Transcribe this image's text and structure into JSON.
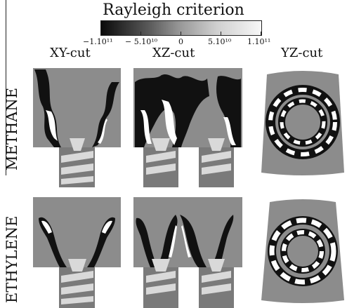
{
  "title": "Rayleigh criterion",
  "colorbar": {
    "ticks": [
      "−1.10¹¹",
      "− 5.10¹⁰",
      "0",
      "5.10¹⁰",
      "1.10¹¹"
    ],
    "colors": [
      "#0a0a0a",
      "#9a9a9a",
      "#f7f7f7"
    ]
  },
  "columns": [
    "XY-cut",
    "XZ-cut",
    "YZ-cut"
  ],
  "rows": [
    "METHANE",
    "ETHYLENE"
  ],
  "colors": {
    "field_background": "#8c8c8c",
    "injector": "#d9d9d9",
    "swirler": "#7a7a7a"
  }
}
